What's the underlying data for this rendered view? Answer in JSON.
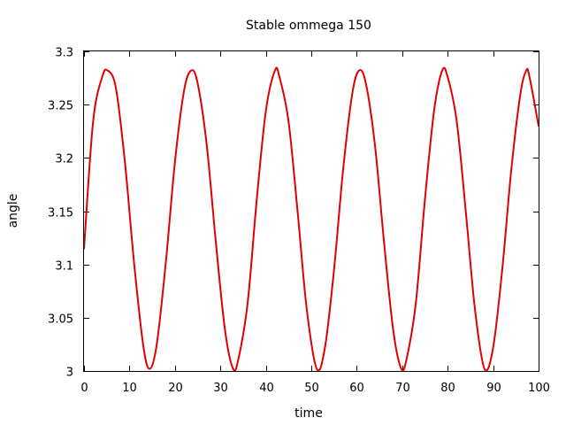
{
  "chart_data": {
    "type": "line",
    "title": "Stable ommega 150",
    "xlabel": "time",
    "ylabel": "angle",
    "xlim": [
      0,
      100
    ],
    "ylim": [
      3.0,
      3.3
    ],
    "xticks": [
      0,
      10,
      20,
      30,
      40,
      50,
      60,
      70,
      80,
      90,
      100
    ],
    "xtick_labels": [
      "0",
      "10",
      "20",
      "30",
      "40",
      "50",
      "60",
      "70",
      "80",
      "90",
      "100"
    ],
    "yticks": [
      3.0,
      3.05,
      3.1,
      3.15,
      3.2,
      3.25,
      3.3
    ],
    "ytick_labels": [
      "3",
      "3.05",
      "3.1",
      "3.15",
      "3.2",
      "3.25",
      "3.3"
    ],
    "grid": false,
    "legend": "none",
    "series": [
      {
        "color": "#e00000",
        "x": [
          0,
          2,
          4,
          5.2,
          7,
          9,
          11,
          13,
          14.4,
          16,
          18,
          20,
          22,
          23.6,
          25,
          27,
          29,
          31,
          32.8,
          34,
          36,
          38,
          40,
          42.0,
          43,
          45,
          47,
          49,
          51.2,
          53,
          55,
          57,
          59,
          60.5,
          62,
          64,
          66,
          68,
          69.8,
          71,
          73,
          75,
          77,
          78.8,
          80,
          82,
          84,
          86,
          88.1,
          90,
          92,
          94,
          96,
          97.3,
          98,
          100
        ],
        "y": [
          3.115,
          3.234,
          3.276,
          3.282,
          3.266,
          3.196,
          3.102,
          3.025,
          3.002,
          3.025,
          3.102,
          3.196,
          3.263,
          3.282,
          3.27,
          3.212,
          3.121,
          3.039,
          3.002,
          3.012,
          3.064,
          3.161,
          3.244,
          3.282,
          3.276,
          3.234,
          3.149,
          3.058,
          3.002,
          3.022,
          3.095,
          3.189,
          3.26,
          3.282,
          3.27,
          3.212,
          3.121,
          3.039,
          3.002,
          3.012,
          3.064,
          3.161,
          3.244,
          3.282,
          3.276,
          3.234,
          3.149,
          3.058,
          3.002,
          3.022,
          3.095,
          3.189,
          3.26,
          3.282,
          3.276,
          3.23
        ]
      }
    ]
  }
}
